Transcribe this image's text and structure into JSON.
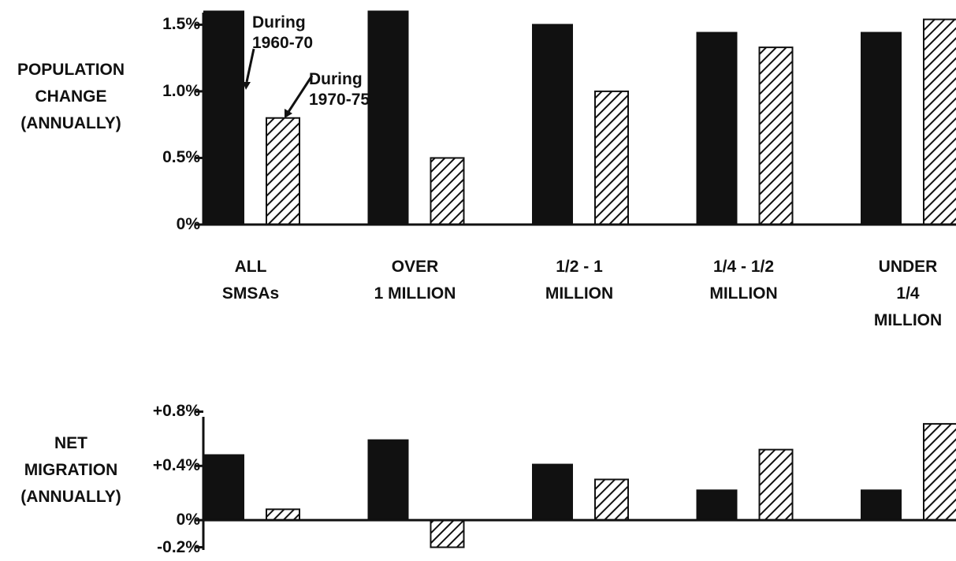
{
  "chart_data": [
    {
      "type": "bar",
      "y_label": "POPULATION\nCHANGE\n(ANNUALLY)",
      "categories": [
        "ALL\nSMSAs",
        "OVER\n1 MILLION",
        "1/2 - 1\nMILLION",
        "1/4 - 1/2\nMILLION",
        "UNDER 1/4\nMILLION"
      ],
      "series": [
        {
          "name": "During\n1960-70",
          "color": "#111111",
          "pattern": "solid",
          "values": [
            1.6,
            1.6,
            1.5,
            1.44,
            1.44
          ]
        },
        {
          "name": "During\n1970-75",
          "color": "#111111",
          "pattern": "hatch",
          "values": [
            0.8,
            0.5,
            1.0,
            1.33,
            1.54
          ]
        }
      ],
      "ylim": [
        0,
        1.65
      ],
      "yticks": [
        {
          "value": 0,
          "label": "0%"
        },
        {
          "value": 0.5,
          "label": "0.5%"
        },
        {
          "value": 1.0,
          "label": "1.0%"
        },
        {
          "value": 1.5,
          "label": "1.5%"
        }
      ]
    },
    {
      "type": "bar",
      "y_label": "NET\nMIGRATION\n(ANNUALLY)",
      "series": [
        {
          "color": "#111111",
          "pattern": "solid",
          "values": [
            0.48,
            0.59,
            0.41,
            0.22,
            0.22
          ]
        },
        {
          "color": "#111111",
          "pattern": "hatch",
          "values": [
            0.08,
            -0.2,
            0.3,
            0.52,
            0.71
          ]
        }
      ],
      "ylim": [
        -0.22,
        0.82
      ],
      "yticks": [
        {
          "value": 0.8,
          "label": "+0.8%"
        },
        {
          "value": 0.4,
          "label": "+0.4%"
        },
        {
          "value": 0,
          "label": "0%"
        },
        {
          "value": -0.2,
          "label": "-0.2%"
        }
      ]
    }
  ]
}
